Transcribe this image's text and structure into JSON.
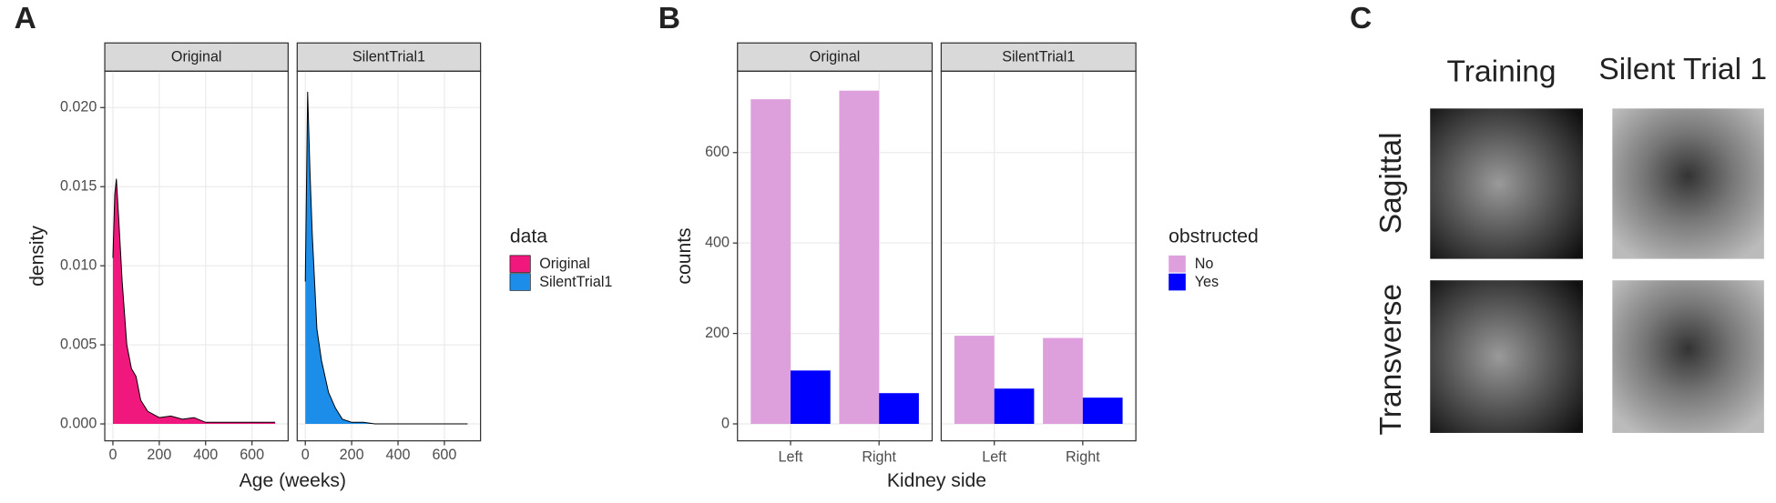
{
  "chart_data": [
    {
      "type": "density",
      "panel": "A",
      "facets": [
        "Original",
        "SilentTrial1"
      ],
      "xlabel": "Age (weeks)",
      "ylabel": "density",
      "legend_title": "data",
      "legend": "right",
      "grid": true,
      "xlim": [
        -35,
        756
      ],
      "ylim": [
        -0.00107,
        0.0223
      ],
      "xticks": [
        0,
        200,
        400,
        600
      ],
      "yticks": [
        {
          "value": 0,
          "label": "0.000"
        },
        {
          "value": 0.005,
          "label": "0.005"
        },
        {
          "value": 0.01,
          "label": "0.010"
        },
        {
          "value": 0.015,
          "label": "0.015"
        },
        {
          "value": 0.02,
          "label": "0.020"
        }
      ],
      "series": [
        {
          "name": "Original",
          "color": "#f0177d",
          "x": [
            0,
            8,
            15,
            25,
            40,
            60,
            80,
            100,
            120,
            150,
            200,
            250,
            300,
            350,
            400,
            500,
            600,
            700
          ],
          "values": [
            0.0105,
            0.0145,
            0.0155,
            0.013,
            0.009,
            0.005,
            0.0035,
            0.003,
            0.0015,
            0.0008,
            0.0004,
            0.0005,
            0.0003,
            0.0004,
            0.0001,
            0.0001,
            0.0001,
            0.0001
          ]
        },
        {
          "name": "SilentTrial1",
          "color": "#1c8de8",
          "x": [
            0,
            10,
            20,
            30,
            50,
            70,
            100,
            130,
            160,
            200,
            250,
            300,
            700
          ],
          "values": [
            0.009,
            0.021,
            0.016,
            0.012,
            0.006,
            0.004,
            0.002,
            0.001,
            0.0003,
            0.0001,
            0.0001,
            0,
            0
          ]
        }
      ]
    },
    {
      "type": "bar",
      "panel": "B",
      "xlabel": "Kidney side",
      "ylabel": "counts",
      "legend_title": "obstructed",
      "legend": "right",
      "grid": true,
      "categories": [
        "Left",
        "Right"
      ],
      "ylim": [
        -37.5,
        780
      ],
      "yticks": [
        0,
        200,
        400,
        600
      ],
      "series": [
        {
          "name": "No",
          "color": "#dda0dd"
        },
        {
          "name": "Yes",
          "color": "#0000ff"
        }
      ],
      "facets": [
        {
          "title": "Original",
          "values": [
            [
              718,
              737
            ],
            [
              118,
              68
            ]
          ]
        },
        {
          "title": "SilentTrial1",
          "values": [
            [
              195,
              190
            ],
            [
              78,
              58
            ]
          ]
        }
      ]
    }
  ],
  "panel_c": {
    "letter": "C",
    "columns": [
      "Training",
      "Silent Trial 1"
    ],
    "rows": [
      "Sagittal",
      "Transverse"
    ]
  }
}
